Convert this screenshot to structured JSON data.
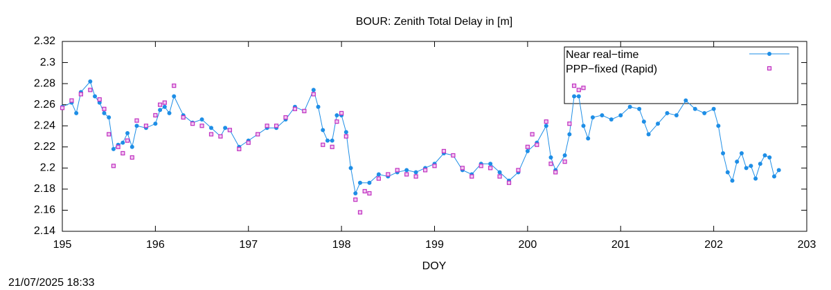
{
  "chart_data": {
    "type": "line",
    "title": "BOUR: Zenith Total Delay in [m]",
    "x_label": "DOY",
    "footer": "21/07/2025 18:33",
    "xlim": [
      195,
      203
    ],
    "xticks": [
      195,
      196,
      197,
      198,
      199,
      200,
      201,
      202,
      203
    ],
    "ylim": [
      2.14,
      2.32
    ],
    "yticks": [
      2.14,
      2.16,
      2.18,
      2.2,
      2.22,
      2.24,
      2.26,
      2.28,
      2.3,
      2.32
    ],
    "legend": "top-right",
    "series": [
      {
        "name": "Near real−time",
        "color": "#1e8ee6",
        "style": "linespoints",
        "x": [
          195.0,
          195.1,
          195.15,
          195.2,
          195.3,
          195.35,
          195.4,
          195.45,
          195.5,
          195.55,
          195.6,
          195.65,
          195.7,
          195.75,
          195.8,
          195.9,
          196.0,
          196.05,
          196.1,
          196.15,
          196.2,
          196.3,
          196.4,
          196.5,
          196.6,
          196.7,
          196.75,
          196.8,
          196.9,
          197.0,
          197.1,
          197.2,
          197.3,
          197.4,
          197.5,
          197.6,
          197.7,
          197.75,
          197.8,
          197.85,
          197.9,
          197.95,
          198.0,
          198.05,
          198.1,
          198.15,
          198.2,
          198.3,
          198.4,
          198.5,
          198.6,
          198.7,
          198.8,
          198.9,
          199.0,
          199.1,
          199.2,
          199.3,
          199.4,
          199.5,
          199.6,
          199.7,
          199.8,
          199.9,
          200.0,
          200.1,
          200.2,
          200.25,
          200.3,
          200.4,
          200.45,
          200.5,
          200.55,
          200.6,
          200.65,
          200.7,
          200.8,
          200.9,
          201.0,
          201.1,
          201.2,
          201.25,
          201.3,
          201.4,
          201.5,
          201.6,
          201.7,
          201.8,
          201.9,
          202.0,
          202.05,
          202.1,
          202.15,
          202.2,
          202.25,
          202.3,
          202.35,
          202.4,
          202.45,
          202.5,
          202.55,
          202.6,
          202.65,
          202.7
        ],
        "values": [
          2.258,
          2.262,
          2.252,
          2.272,
          2.282,
          2.268,
          2.262,
          2.252,
          2.248,
          2.218,
          2.222,
          2.224,
          2.233,
          2.22,
          2.24,
          2.238,
          2.242,
          2.255,
          2.258,
          2.252,
          2.268,
          2.25,
          2.243,
          2.246,
          2.238,
          2.23,
          2.238,
          2.236,
          2.22,
          2.226,
          2.232,
          2.238,
          2.238,
          2.246,
          2.258,
          2.254,
          2.274,
          2.258,
          2.236,
          2.226,
          2.226,
          2.25,
          2.25,
          2.234,
          2.2,
          2.176,
          2.186,
          2.186,
          2.194,
          2.192,
          2.196,
          2.198,
          2.196,
          2.2,
          2.204,
          2.214,
          2.212,
          2.198,
          2.194,
          2.204,
          2.204,
          2.196,
          2.188,
          2.196,
          2.216,
          2.224,
          2.24,
          2.21,
          2.198,
          2.212,
          2.232,
          2.268,
          2.268,
          2.24,
          2.228,
          2.248,
          2.25,
          2.246,
          2.25,
          2.258,
          2.256,
          2.244,
          2.232,
          2.242,
          2.252,
          2.25,
          2.264,
          2.256,
          2.252,
          2.256,
          2.24,
          2.214,
          2.196,
          2.188,
          2.206,
          2.214,
          2.2,
          2.202,
          2.19,
          2.204,
          2.212,
          2.21,
          2.192,
          2.198
        ]
      },
      {
        "name": "PPP−fixed (Rapid)",
        "color": "#c030c0",
        "style": "points",
        "x": [
          195.0,
          195.1,
          195.2,
          195.3,
          195.4,
          195.45,
          195.5,
          195.55,
          195.6,
          195.65,
          195.7,
          195.75,
          195.8,
          195.9,
          196.0,
          196.05,
          196.1,
          196.2,
          196.3,
          196.4,
          196.5,
          196.6,
          196.7,
          196.8,
          196.9,
          197.0,
          197.1,
          197.2,
          197.3,
          197.4,
          197.5,
          197.6,
          197.7,
          197.8,
          197.9,
          197.95,
          198.0,
          198.05,
          198.15,
          198.2,
          198.25,
          198.3,
          198.4,
          198.5,
          198.6,
          198.7,
          198.8,
          198.9,
          199.0,
          199.1,
          199.2,
          199.3,
          199.4,
          199.5,
          199.6,
          199.7,
          199.8,
          199.9,
          200.0,
          200.05,
          200.1,
          200.2,
          200.25,
          200.3,
          200.4,
          200.45,
          200.5,
          200.55,
          200.6
        ],
        "values": [
          2.257,
          2.264,
          2.27,
          2.274,
          2.265,
          2.256,
          2.232,
          2.202,
          2.22,
          2.214,
          2.226,
          2.21,
          2.245,
          2.24,
          2.25,
          2.26,
          2.262,
          2.278,
          2.248,
          2.242,
          2.24,
          2.232,
          2.23,
          2.236,
          2.218,
          2.224,
          2.232,
          2.24,
          2.24,
          2.248,
          2.256,
          2.254,
          2.27,
          2.222,
          2.22,
          2.244,
          2.252,
          2.23,
          2.17,
          2.158,
          2.178,
          2.176,
          2.19,
          2.194,
          2.198,
          2.194,
          2.192,
          2.198,
          2.202,
          2.216,
          2.212,
          2.2,
          2.192,
          2.202,
          2.2,
          2.192,
          2.186,
          2.198,
          2.22,
          2.232,
          2.222,
          2.244,
          2.204,
          2.196,
          2.206,
          2.242,
          2.278,
          2.274,
          2.276
        ]
      }
    ]
  }
}
